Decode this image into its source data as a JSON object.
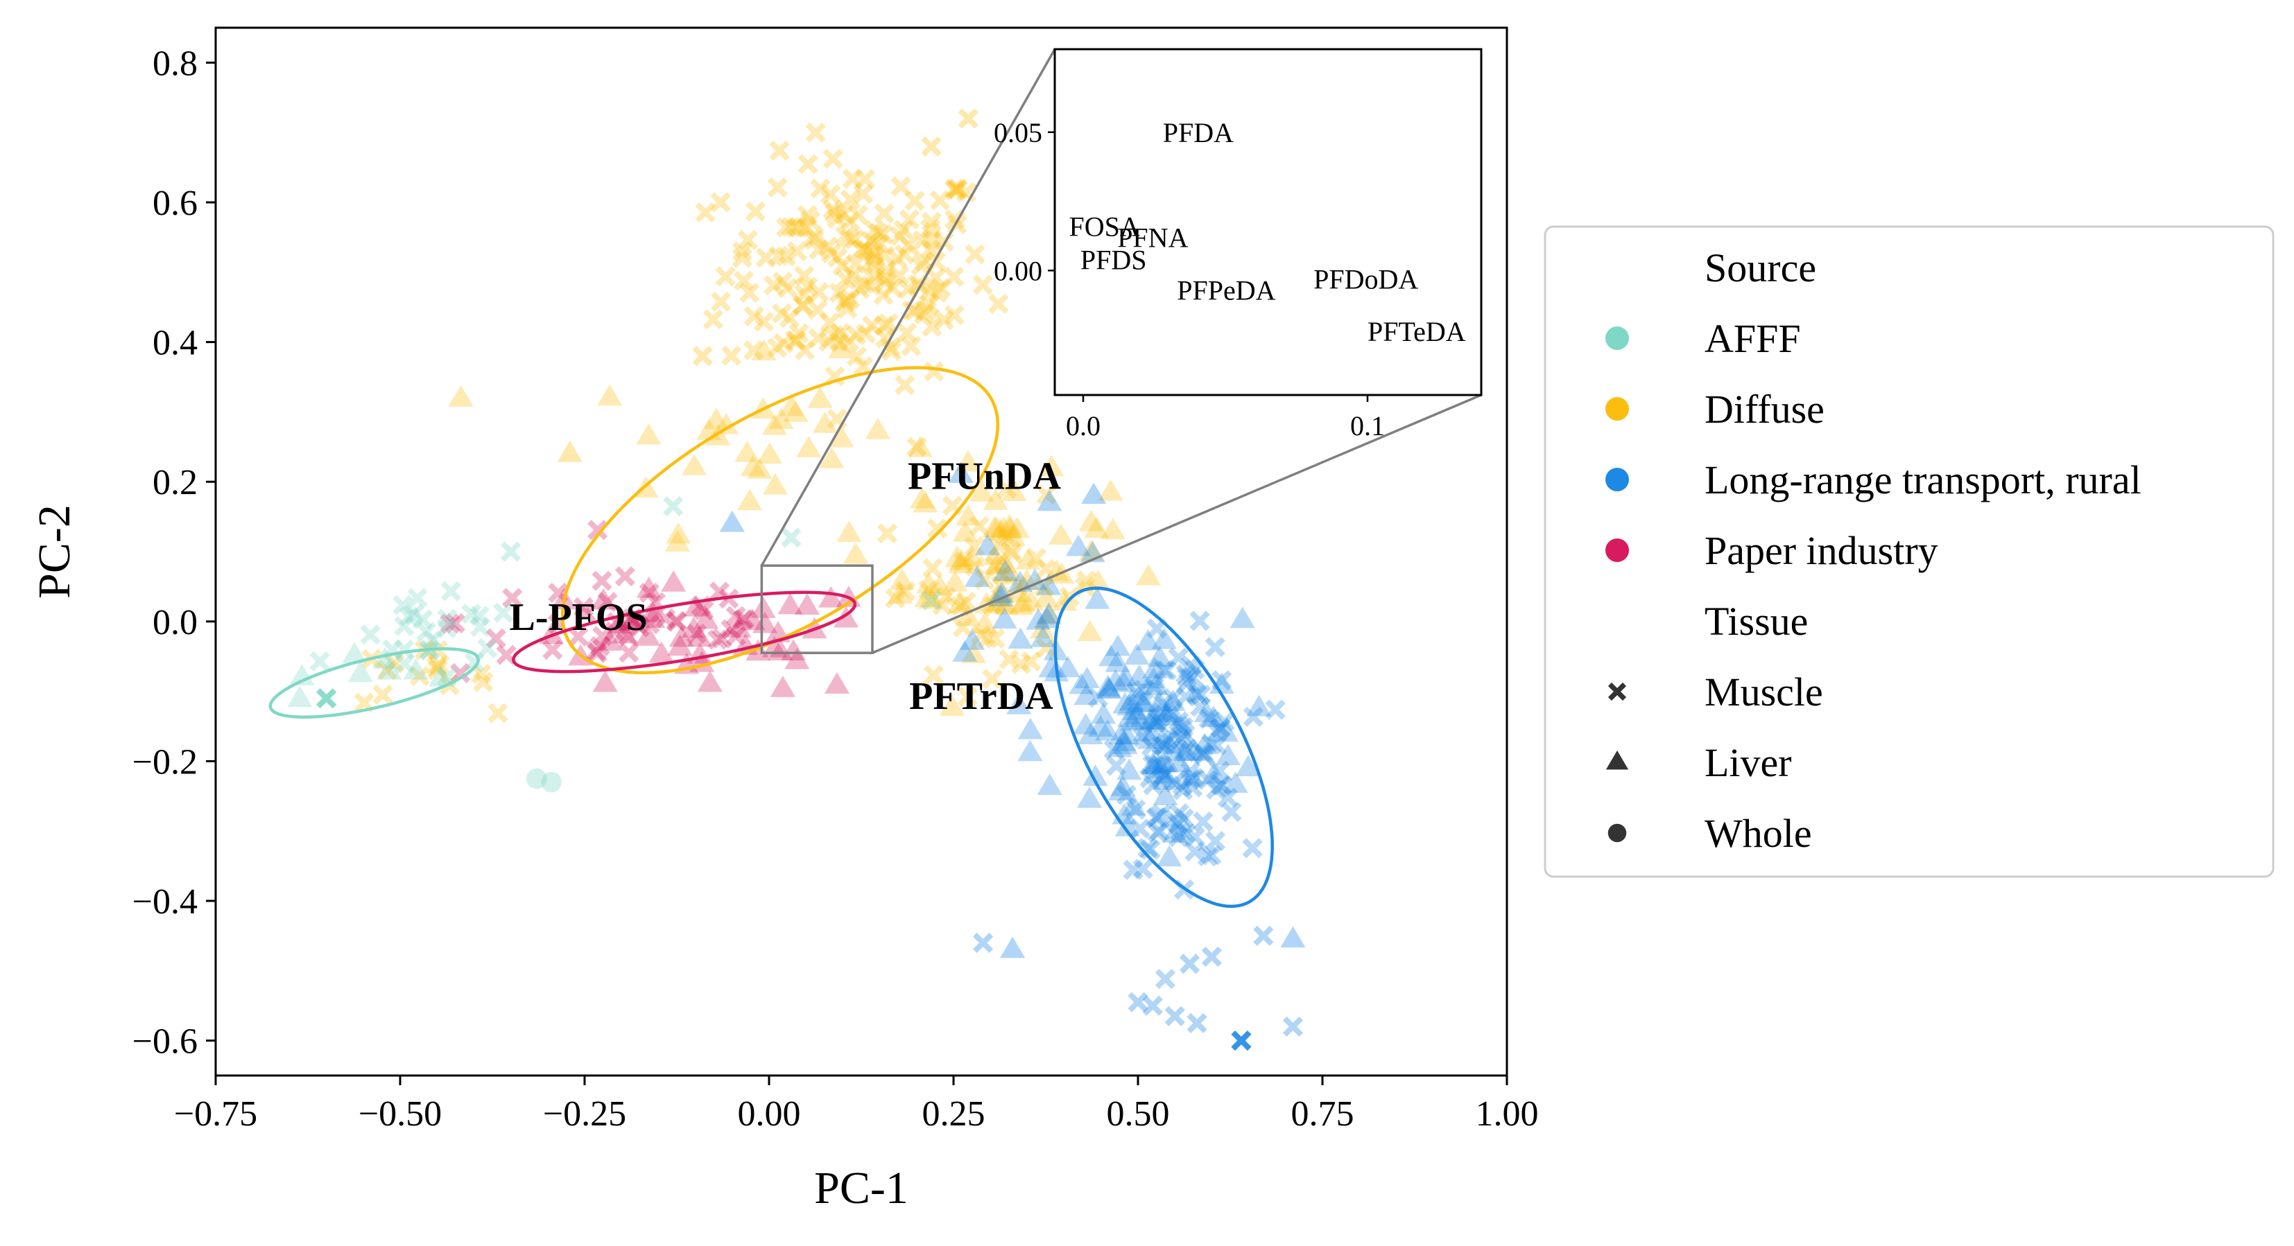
{
  "chart_data": {
    "type": "scatter",
    "title": "",
    "xlabel": "PC-1",
    "ylabel": "PC-2",
    "xlim": [
      -0.75,
      1.0
    ],
    "ylim": [
      -0.65,
      0.85
    ],
    "x_ticks": [
      -0.75,
      -0.5,
      -0.25,
      0.0,
      0.25,
      0.5,
      0.75,
      1.0
    ],
    "x_tick_labels": [
      "−0.75",
      "−0.50",
      "−0.25",
      "0.00",
      "0.25",
      "0.50",
      "0.75",
      "1.00"
    ],
    "y_ticks": [
      -0.6,
      -0.4,
      -0.2,
      0.0,
      0.2,
      0.4,
      0.6,
      0.8
    ],
    "y_tick_labels": [
      "−0.6",
      "−0.4",
      "−0.2",
      "0.0",
      "0.2",
      "0.4",
      "0.6",
      "0.8"
    ],
    "grid": false,
    "legend_position": "right outside",
    "legend": {
      "source_title": "Source",
      "tissue_title": "Tissue",
      "sources": [
        {
          "name": "AFFF",
          "color": "#7fd8c6"
        },
        {
          "name": "Diffuse",
          "color": "#fbbe0f"
        },
        {
          "name": "Long-range transport, rural",
          "color": "#1e88e5"
        },
        {
          "name": "Paper industry",
          "color": "#d81b60"
        }
      ],
      "tissues": [
        {
          "name": "Muscle",
          "marker": "x"
        },
        {
          "name": "Liver",
          "marker": "triangle"
        },
        {
          "name": "Whole",
          "marker": "circle"
        }
      ]
    },
    "ellipses": [
      {
        "source": "AFFF",
        "cx": -0.535,
        "cy": -0.088,
        "rx": 0.145,
        "ry": 0.035,
        "angle_deg": 14
      },
      {
        "source": "Diffuse",
        "cx": 0.015,
        "cy": 0.145,
        "rx": 0.335,
        "ry": 0.15,
        "angle_deg": 32
      },
      {
        "source": "Long-range transport, rural",
        "cx": 0.535,
        "cy": -0.18,
        "rx": 0.25,
        "ry": 0.105,
        "angle_deg": -63
      },
      {
        "source": "Paper industry",
        "cx": -0.115,
        "cy": -0.015,
        "rx": 0.235,
        "ry": 0.04,
        "angle_deg": 10
      }
    ],
    "annotations": [
      {
        "text": "PFUnDA",
        "x": 0.188,
        "y": 0.19
      },
      {
        "text": "L-PFOS",
        "x": -0.352,
        "y": -0.012
      },
      {
        "text": "PFTrDA",
        "x": 0.19,
        "y": -0.125
      }
    ],
    "zoom_box": {
      "x": [
        -0.01,
        0.14
      ],
      "y": [
        -0.045,
        0.08
      ]
    },
    "inset": {
      "xlim": [
        -0.01,
        0.14
      ],
      "ylim": [
        -0.045,
        0.08
      ],
      "x_ticks": [
        0.0,
        0.1
      ],
      "x_tick_labels": [
        "0.0",
        "0.1"
      ],
      "y_ticks": [
        0.0,
        0.05
      ],
      "y_tick_labels": [
        "0.00",
        "0.05"
      ],
      "labels": [
        {
          "text": "PFDA",
          "x": 0.028,
          "y": 0.05
        },
        {
          "text": "FOSA",
          "x": -0.005,
          "y": 0.016
        },
        {
          "text": "PFNA",
          "x": 0.012,
          "y": 0.012
        },
        {
          "text": "PFDS",
          "x": -0.001,
          "y": 0.004
        },
        {
          "text": "PFPeDA",
          "x": 0.033,
          "y": -0.007
        },
        {
          "text": "PFDoDA",
          "x": 0.081,
          "y": -0.003
        },
        {
          "text": "PFTeDA",
          "x": 0.1,
          "y": -0.022
        }
      ]
    },
    "clusters": [
      {
        "source": "Diffuse",
        "marker": "x",
        "cx": 0.12,
        "cy": 0.5,
        "sx": 0.09,
        "sy": 0.08,
        "n": 170
      },
      {
        "source": "Diffuse",
        "marker": "triangle",
        "cx": 0.0,
        "cy": 0.25,
        "sx": 0.12,
        "sy": 0.06,
        "n": 35
      },
      {
        "source": "Diffuse",
        "marker": "triangle",
        "cx": 0.32,
        "cy": 0.08,
        "sx": 0.07,
        "sy": 0.06,
        "n": 60
      },
      {
        "source": "Diffuse",
        "marker": "x",
        "cx": 0.3,
        "cy": 0.05,
        "sx": 0.08,
        "sy": 0.06,
        "n": 45
      },
      {
        "source": "Diffuse",
        "marker": "x",
        "cx": -0.48,
        "cy": -0.08,
        "sx": 0.05,
        "sy": 0.02,
        "n": 15
      },
      {
        "source": "Paper industry",
        "marker": "x",
        "cx": -0.18,
        "cy": 0.0,
        "sx": 0.12,
        "sy": 0.04,
        "n": 45
      },
      {
        "source": "Paper industry",
        "marker": "triangle",
        "cx": -0.1,
        "cy": -0.03,
        "sx": 0.13,
        "sy": 0.04,
        "n": 45
      },
      {
        "source": "AFFF",
        "marker": "x",
        "cx": -0.45,
        "cy": -0.03,
        "sx": 0.06,
        "sy": 0.03,
        "n": 25
      },
      {
        "source": "AFFF",
        "marker": "triangle",
        "cx": -0.5,
        "cy": -0.06,
        "sx": 0.06,
        "sy": 0.02,
        "n": 8
      },
      {
        "source": "Long-range transport, rural",
        "marker": "x",
        "cx": 0.56,
        "cy": -0.19,
        "sx": 0.04,
        "sy": 0.08,
        "n": 110
      },
      {
        "source": "Long-range transport, rural",
        "marker": "triangle",
        "cx": 0.5,
        "cy": -0.16,
        "sx": 0.07,
        "sy": 0.08,
        "n": 90
      },
      {
        "source": "Long-range transport, rural",
        "marker": "triangle",
        "cx": 0.35,
        "cy": 0.05,
        "sx": 0.06,
        "sy": 0.06,
        "n": 20
      }
    ],
    "points": [
      {
        "source": "AFFF",
        "marker": "x",
        "x": -0.6,
        "y": -0.11,
        "strong": true
      },
      {
        "source": "AFFF",
        "marker": "circle",
        "x": -0.315,
        "y": -0.225
      },
      {
        "source": "AFFF",
        "marker": "circle",
        "x": -0.295,
        "y": -0.23
      },
      {
        "source": "AFFF",
        "marker": "x",
        "x": -0.35,
        "y": 0.1
      },
      {
        "source": "AFFF",
        "marker": "x",
        "x": -0.13,
        "y": 0.165
      },
      {
        "source": "AFFF",
        "marker": "x",
        "x": 0.03,
        "y": 0.12
      },
      {
        "source": "AFFF",
        "marker": "x",
        "x": 0.22,
        "y": 0.03
      },
      {
        "source": "Diffuse",
        "marker": "x",
        "x": 0.27,
        "y": 0.72
      },
      {
        "source": "Diffuse",
        "marker": "x",
        "x": 0.22,
        "y": 0.68
      },
      {
        "source": "Diffuse",
        "marker": "x",
        "x": -0.09,
        "y": 0.38
      },
      {
        "source": "Diffuse",
        "marker": "triangle",
        "x": -0.27,
        "y": 0.24
      },
      {
        "source": "Diffuse",
        "marker": "x",
        "x": 0.2,
        "y": 0.25
      },
      {
        "source": "Long-range transport, rural",
        "marker": "x",
        "x": 0.64,
        "y": -0.6,
        "strong": true
      },
      {
        "source": "Long-range transport, rural",
        "marker": "x",
        "x": 0.29,
        "y": -0.46
      },
      {
        "source": "Long-range transport, rural",
        "marker": "triangle",
        "x": 0.33,
        "y": -0.47
      },
      {
        "source": "Long-range transport, rural",
        "marker": "x",
        "x": 0.67,
        "y": -0.45
      },
      {
        "source": "Long-range transport, rural",
        "marker": "triangle",
        "x": 0.71,
        "y": -0.455
      },
      {
        "source": "Long-range transport, rural",
        "marker": "x",
        "x": 0.71,
        "y": -0.58
      },
      {
        "source": "Long-range transport, rural",
        "marker": "x",
        "x": 0.5,
        "y": -0.545
      },
      {
        "source": "Long-range transport, rural",
        "marker": "x",
        "x": 0.52,
        "y": -0.55
      },
      {
        "source": "Long-range transport, rural",
        "marker": "x",
        "x": 0.55,
        "y": -0.565
      },
      {
        "source": "Long-range transport, rural",
        "marker": "x",
        "x": 0.58,
        "y": -0.575
      },
      {
        "source": "Long-range transport, rural",
        "marker": "x",
        "x": 0.57,
        "y": -0.49
      },
      {
        "source": "Long-range transport, rural",
        "marker": "x",
        "x": 0.6,
        "y": -0.48
      },
      {
        "source": "Long-range transport, rural",
        "marker": "triangle",
        "x": 0.26,
        "y": 0.21
      },
      {
        "source": "Long-range transport, rural",
        "marker": "triangle",
        "x": 0.38,
        "y": 0.17
      },
      {
        "source": "Long-range transport, rural",
        "marker": "triangle",
        "x": 0.44,
        "y": 0.18
      },
      {
        "source": "Long-range transport, rural",
        "marker": "triangle",
        "x": -0.05,
        "y": 0.14
      }
    ]
  }
}
